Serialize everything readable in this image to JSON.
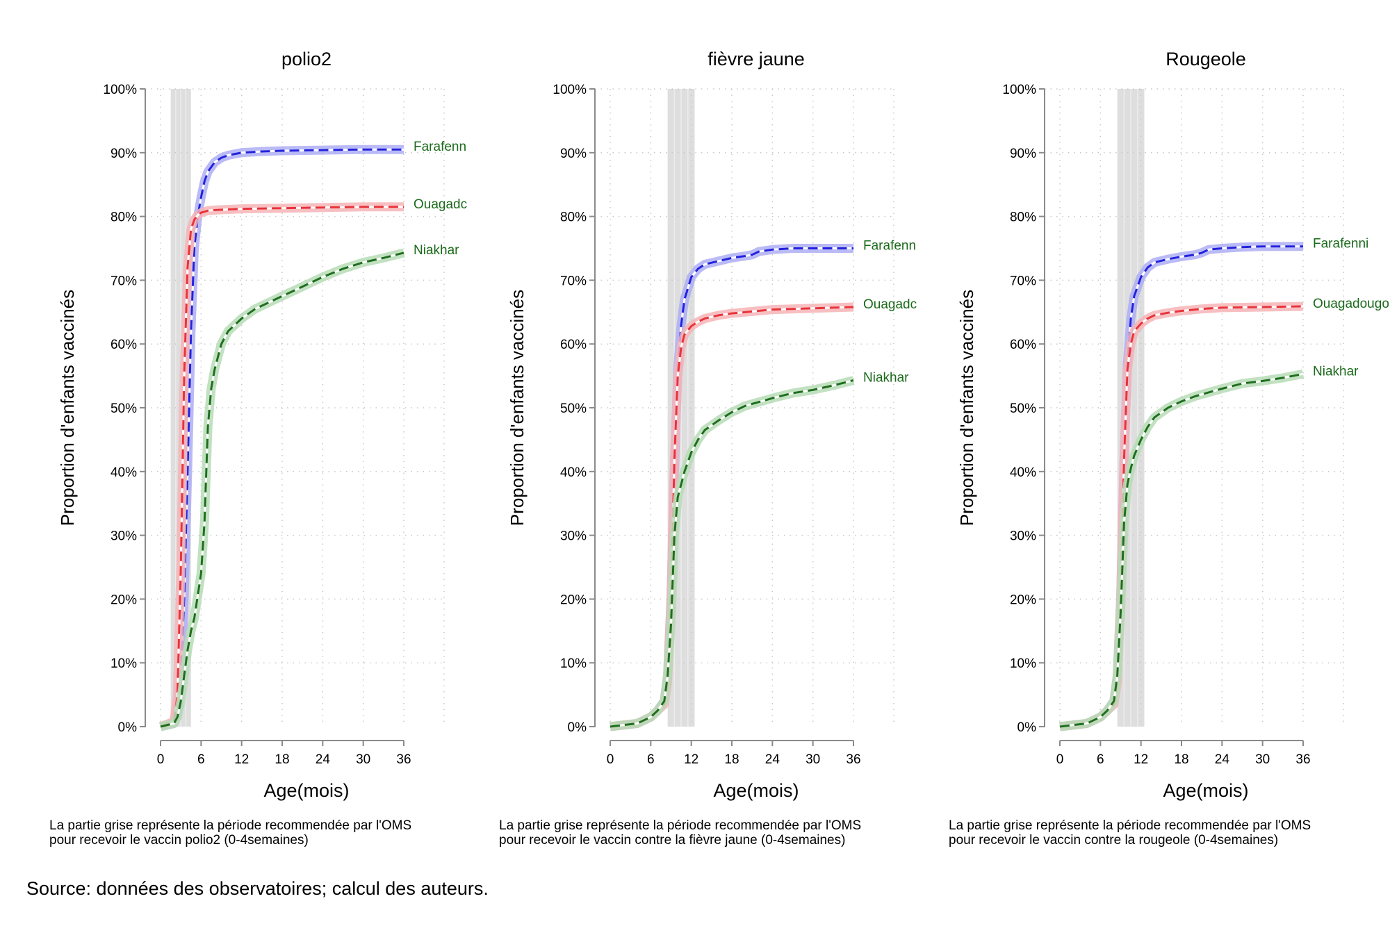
{
  "source_note": "Source: données des observatoires; calcul des auteurs.",
  "colors": {
    "farafenni": "#2222dd",
    "ouagadougou": "#e8333a",
    "niakhar": "#1e6e1e",
    "farafenni_band": "#aeaef4",
    "ouagadougou_band": "#f6b4b6",
    "niakhar_band": "#b6dcb6",
    "shade": "#d3d3d3",
    "label": "#1a6a1a"
  },
  "chart_data": [
    {
      "type": "line",
      "title": "polio2",
      "xlabel": "Age(mois)",
      "ylabel": "Proportion d'enfants vaccinés",
      "xticks": [
        0,
        6,
        12,
        18,
        24,
        30,
        36
      ],
      "yticks": [
        "0%",
        "10%",
        "20%",
        "30%",
        "40%",
        "50%",
        "60%",
        "70%",
        "80%",
        "90%",
        "100%"
      ],
      "xlim": [
        0,
        36
      ],
      "ylim": [
        0,
        100
      ],
      "grid": true,
      "shaded_x": [
        1.5,
        4.5
      ],
      "note_lines": [
        "La partie grise représente la période recommendée par l'OMS",
        "pour recevoir le vaccin polio2 (0-4semaines)"
      ],
      "series": [
        {
          "name": "Farafenn",
          "key": "farafenni",
          "x": [
            0,
            2,
            2.5,
            3,
            3.5,
            4,
            4.5,
            5,
            5.5,
            6,
            6.5,
            7,
            8,
            9,
            10,
            12,
            15,
            18,
            24,
            30,
            36
          ],
          "y": [
            0,
            0.5,
            2,
            8,
            20,
            40,
            62,
            75,
            80,
            83,
            85.5,
            87,
            88.5,
            89.2,
            89.6,
            90,
            90.2,
            90.3,
            90.4,
            90.5,
            90.5
          ]
        },
        {
          "name": "Ouagadc",
          "key": "ouagadougou",
          "x": [
            0,
            2,
            2.5,
            3,
            3.5,
            4,
            4.5,
            5,
            5.5,
            6,
            7,
            8,
            10,
            12,
            18,
            24,
            30,
            36
          ],
          "y": [
            0,
            0.8,
            5,
            25,
            55,
            72,
            78,
            79.5,
            80.2,
            80.6,
            80.9,
            81,
            81.1,
            81.2,
            81.3,
            81.4,
            81.5,
            81.5
          ]
        },
        {
          "name": "Niakhar",
          "key": "niakhar",
          "x": [
            0,
            2,
            2.5,
            3,
            3.5,
            4,
            4.5,
            5,
            6,
            6.5,
            7,
            7.5,
            8,
            9,
            10,
            12,
            14,
            16,
            18,
            21,
            24,
            27,
            30,
            33,
            36
          ],
          "y": [
            0,
            0.5,
            1.5,
            4,
            8,
            12,
            15,
            17,
            24,
            32,
            47,
            53,
            56,
            60,
            62,
            64,
            65.5,
            66.5,
            67.5,
            69,
            70.5,
            71.8,
            72.8,
            73.5,
            74.3
          ]
        }
      ]
    },
    {
      "type": "line",
      "title": "fièvre jaune",
      "xlabel": "Age(mois)",
      "ylabel": "Proportion d'enfants vaccinés",
      "xticks": [
        0,
        6,
        12,
        18,
        24,
        30,
        36
      ],
      "yticks": [
        "0%",
        "10%",
        "20%",
        "30%",
        "40%",
        "50%",
        "60%",
        "70%",
        "80%",
        "90%",
        "100%"
      ],
      "xlim": [
        0,
        36
      ],
      "ylim": [
        0,
        100
      ],
      "grid": true,
      "shaded_x": [
        8.5,
        12.5
      ],
      "note_lines": [
        "La partie grise représente la période recommendée par l'OMS",
        "pour recevoir le vaccin contre la fièvre jaune  (0-4semaines)"
      ],
      "series": [
        {
          "name": "Farafenn",
          "key": "farafenni",
          "x": [
            0,
            4,
            6,
            7,
            8,
            8.5,
            9,
            9.5,
            10,
            10.5,
            11,
            12,
            13,
            14,
            16,
            18,
            20,
            21,
            22,
            24,
            27,
            30,
            36
          ],
          "y": [
            0,
            0.5,
            1.5,
            2.5,
            4,
            8,
            20,
            40,
            56,
            63,
            67,
            70.5,
            71.8,
            72.5,
            73,
            73.5,
            73.8,
            74,
            74.5,
            74.8,
            75,
            75,
            75
          ]
        },
        {
          "name": "Ouagadc",
          "key": "ouagadougou",
          "x": [
            0,
            4,
            6,
            7,
            8,
            8.5,
            9,
            9.5,
            10,
            10.5,
            11,
            12,
            13,
            14,
            16,
            18,
            21,
            24,
            30,
            36
          ],
          "y": [
            0,
            0.5,
            1.5,
            2.5,
            3.5,
            7,
            20,
            42,
            55,
            59.5,
            61.5,
            62.8,
            63.5,
            64,
            64.5,
            64.8,
            65.1,
            65.4,
            65.6,
            65.8
          ]
        },
        {
          "name": "Niakhar",
          "key": "niakhar",
          "x": [
            0,
            4,
            6,
            7,
            8,
            8.5,
            9,
            9.5,
            10,
            10.5,
            11,
            12,
            13,
            14,
            16,
            18,
            20,
            24,
            27,
            30,
            33,
            36
          ],
          "y": [
            0,
            0.5,
            1.5,
            2.5,
            4,
            8,
            16,
            30,
            36,
            38,
            40,
            43,
            45,
            46.5,
            48,
            49.3,
            50.3,
            51.5,
            52.3,
            52.8,
            53.5,
            54.3
          ]
        }
      ]
    },
    {
      "type": "line",
      "title": "Rougeole",
      "xlabel": "Age(mois)",
      "ylabel": "Proportion d'enfants vaccinés",
      "xticks": [
        0,
        6,
        12,
        18,
        24,
        30,
        36
      ],
      "yticks": [
        "0%",
        "10%",
        "20%",
        "30%",
        "40%",
        "50%",
        "60%",
        "70%",
        "80%",
        "90%",
        "100%"
      ],
      "xlim": [
        0,
        36
      ],
      "ylim": [
        0,
        100
      ],
      "grid": true,
      "shaded_x": [
        8.5,
        12.5
      ],
      "note_lines": [
        "La partie grise représente la période recommendée par l'OMS",
        "pour recevoir le vaccin contre la rougeole (0-4semaines)"
      ],
      "series": [
        {
          "name": "Farafenni",
          "key": "farafenni",
          "x": [
            0,
            4,
            6,
            7,
            8,
            8.5,
            9,
            9.5,
            10,
            10.5,
            11,
            12,
            13,
            14,
            16,
            18,
            20,
            21,
            22,
            24,
            27,
            30,
            36
          ],
          "y": [
            0,
            0.5,
            1.5,
            2.5,
            4,
            8,
            20,
            42,
            57,
            64,
            67.5,
            70.5,
            72,
            72.8,
            73.3,
            73.7,
            74,
            74.3,
            74.8,
            75,
            75.2,
            75.3,
            75.3
          ]
        },
        {
          "name": "Ouagadougou",
          "key": "ouagadougou",
          "x": [
            0,
            4,
            6,
            7,
            8,
            8.5,
            9,
            9.5,
            10,
            10.5,
            11,
            12,
            13,
            14,
            16,
            18,
            21,
            24,
            30,
            36
          ],
          "y": [
            0,
            0.5,
            1.5,
            2.5,
            3.5,
            7,
            20,
            42,
            56,
            60,
            62,
            63.2,
            64,
            64.5,
            64.9,
            65.2,
            65.5,
            65.7,
            65.8,
            65.9
          ]
        },
        {
          "name": "Niakhar",
          "key": "niakhar",
          "x": [
            0,
            4,
            6,
            7,
            8,
            8.5,
            9,
            9.5,
            10,
            10.5,
            11,
            12,
            13,
            14,
            16,
            18,
            20,
            24,
            27,
            30,
            33,
            36
          ],
          "y": [
            0,
            0.5,
            1.5,
            2.5,
            4,
            8,
            18,
            32,
            38,
            40.5,
            42.5,
            45,
            47,
            48.5,
            50,
            51,
            51.8,
            53,
            53.8,
            54.2,
            54.7,
            55.3
          ]
        }
      ]
    }
  ]
}
